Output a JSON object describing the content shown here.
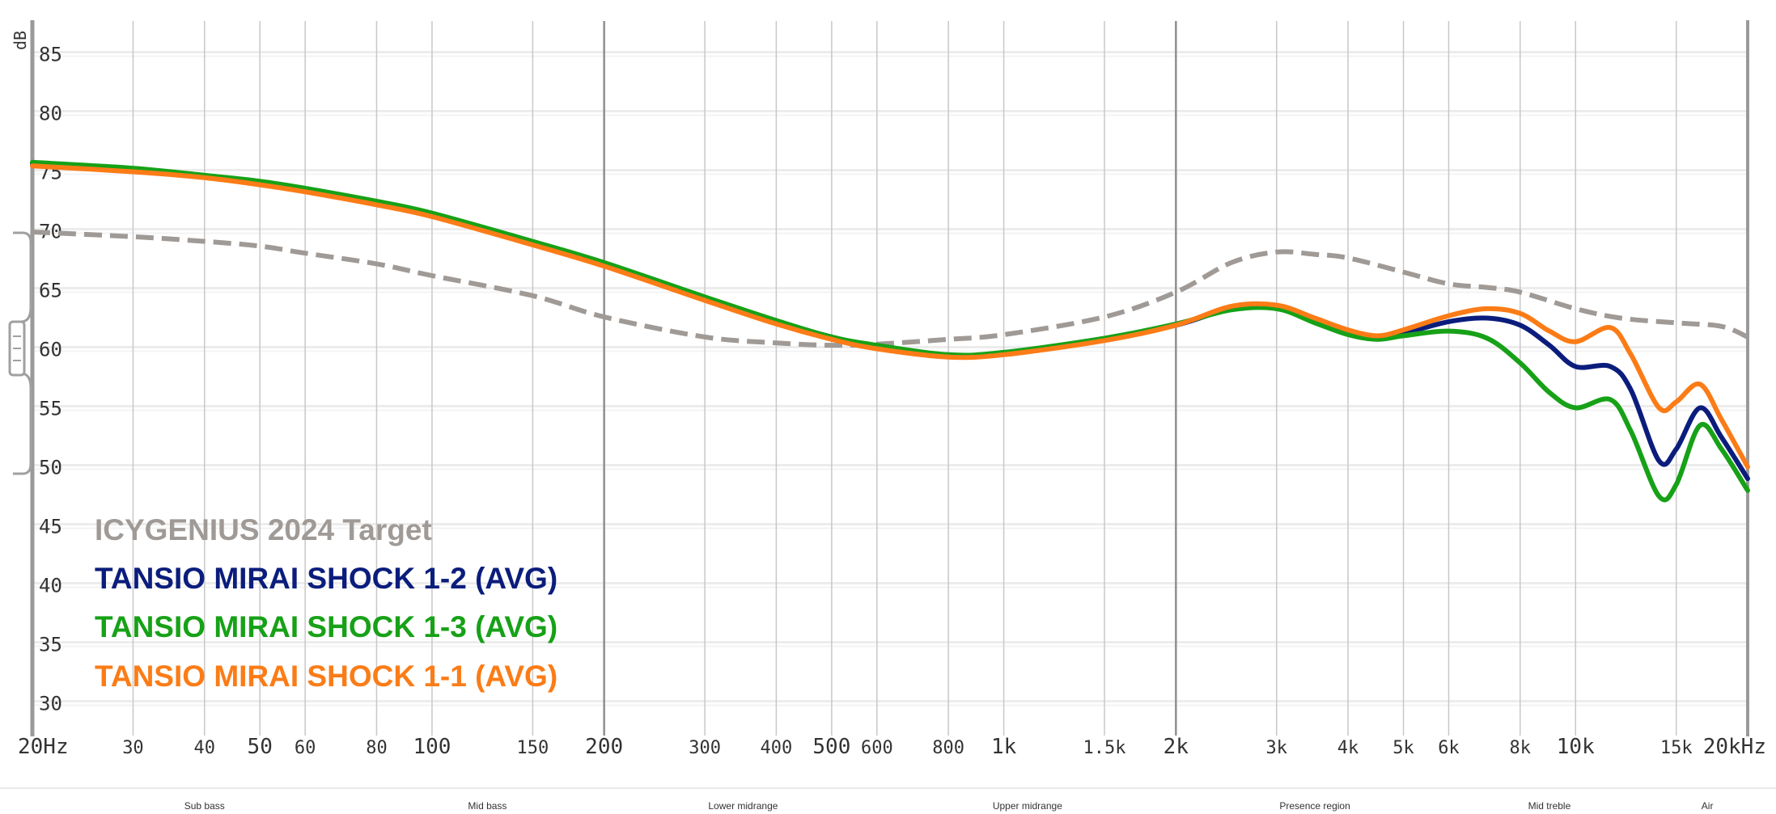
{
  "chart_data": {
    "type": "line",
    "x_scale": "log",
    "xlim": [
      20,
      20000
    ],
    "ylim": [
      27.5,
      87.5
    ],
    "ylabel": "dB",
    "y_ticks": [
      85,
      80,
      75,
      70,
      65,
      60,
      55,
      50,
      45,
      40,
      35,
      30
    ],
    "x_ticks": [
      {
        "value": 20,
        "label": "20Hz",
        "major": true
      },
      {
        "value": 30,
        "label": "30",
        "major": false
      },
      {
        "value": 40,
        "label": "40",
        "major": false
      },
      {
        "value": 50,
        "label": "50",
        "major": false
      },
      {
        "value": 60,
        "label": "60",
        "major": false
      },
      {
        "value": 80,
        "label": "80",
        "major": false
      },
      {
        "value": 100,
        "label": "100",
        "major": false
      },
      {
        "value": 150,
        "label": "150",
        "major": false
      },
      {
        "value": 200,
        "label": "200",
        "major": true
      },
      {
        "value": 300,
        "label": "300",
        "major": false
      },
      {
        "value": 400,
        "label": "400",
        "major": false
      },
      {
        "value": 500,
        "label": "500",
        "major": false
      },
      {
        "value": 600,
        "label": "600",
        "major": false
      },
      {
        "value": 800,
        "label": "800",
        "major": false
      },
      {
        "value": 1000,
        "label": "1k",
        "major": false
      },
      {
        "value": 1500,
        "label": "1.5k",
        "major": false
      },
      {
        "value": 2000,
        "label": "2k",
        "major": true
      },
      {
        "value": 3000,
        "label": "3k",
        "major": false
      },
      {
        "value": 4000,
        "label": "4k",
        "major": false
      },
      {
        "value": 5000,
        "label": "5k",
        "major": false
      },
      {
        "value": 6000,
        "label": "6k",
        "major": false
      },
      {
        "value": 8000,
        "label": "8k",
        "major": false
      },
      {
        "value": 10000,
        "label": "10k",
        "major": false
      },
      {
        "value": 15000,
        "label": "15k",
        "major": false
      },
      {
        "value": 20000,
        "label": "20kHz",
        "major": true
      }
    ],
    "bands": [
      {
        "label": "Sub bass",
        "x": 40
      },
      {
        "label": "Mid bass",
        "x": 125
      },
      {
        "label": "Lower midrange",
        "x": 350
      },
      {
        "label": "Upper midrange",
        "x": 1100
      },
      {
        "label": "Presence region",
        "x": 3500
      },
      {
        "label": "Mid treble",
        "x": 9000
      },
      {
        "label": "Air",
        "x": 17000
      }
    ],
    "grid": true,
    "legend_position": "bottom-left",
    "series": [
      {
        "name": "ICYGENIUS 2024 Target",
        "color": "#a09a96",
        "dashed": true,
        "width": 6,
        "points": [
          [
            20,
            69.9
          ],
          [
            30,
            69.5
          ],
          [
            40,
            69.1
          ],
          [
            50,
            68.7
          ],
          [
            60,
            68.1
          ],
          [
            80,
            67.2
          ],
          [
            100,
            66.2
          ],
          [
            150,
            64.5
          ],
          [
            200,
            62.7
          ],
          [
            300,
            61.0
          ],
          [
            400,
            60.5
          ],
          [
            500,
            60.3
          ],
          [
            600,
            60.4
          ],
          [
            800,
            60.8
          ],
          [
            1000,
            61.2
          ],
          [
            1500,
            62.7
          ],
          [
            2000,
            64.8
          ],
          [
            2500,
            67.3
          ],
          [
            3000,
            68.2
          ],
          [
            3500,
            68.0
          ],
          [
            4000,
            67.7
          ],
          [
            5000,
            66.5
          ],
          [
            6000,
            65.5
          ],
          [
            7000,
            65.2
          ],
          [
            8000,
            64.8
          ],
          [
            10000,
            63.4
          ],
          [
            12000,
            62.6
          ],
          [
            15000,
            62.2
          ],
          [
            18000,
            61.9
          ],
          [
            20000,
            61.0
          ]
        ]
      },
      {
        "name": "TANSIO MIRAI SHOCK 1-2 (AVG)",
        "color": "#0b1d7c",
        "dashed": false,
        "width": 6,
        "points": [
          [
            20,
            75.7
          ],
          [
            30,
            75.2
          ],
          [
            40,
            74.6
          ],
          [
            50,
            74.1
          ],
          [
            60,
            73.5
          ],
          [
            80,
            72.4
          ],
          [
            100,
            71.4
          ],
          [
            150,
            69.0
          ],
          [
            200,
            67.2
          ],
          [
            300,
            64.3
          ],
          [
            400,
            62.3
          ],
          [
            500,
            61.0
          ],
          [
            600,
            60.2
          ],
          [
            800,
            59.4
          ],
          [
            1000,
            59.6
          ],
          [
            1500,
            60.8
          ],
          [
            2000,
            62.0
          ],
          [
            2500,
            63.4
          ],
          [
            3000,
            63.5
          ],
          [
            3500,
            62.4
          ],
          [
            4000,
            61.3
          ],
          [
            4500,
            60.9
          ],
          [
            5000,
            61.3
          ],
          [
            6000,
            62.3
          ],
          [
            7000,
            62.6
          ],
          [
            8000,
            62.0
          ],
          [
            9000,
            60.3
          ],
          [
            10000,
            58.5
          ],
          [
            11500,
            58.5
          ],
          [
            12500,
            56.5
          ],
          [
            14000,
            50.5
          ],
          [
            15000,
            51.5
          ],
          [
            16500,
            55.0
          ],
          [
            18000,
            52.5
          ],
          [
            20000,
            49.0
          ]
        ]
      },
      {
        "name": "TANSIO MIRAI SHOCK 1-3 (AVG)",
        "color": "#17a117",
        "dashed": false,
        "width": 6,
        "points": [
          [
            20,
            75.8
          ],
          [
            30,
            75.3
          ],
          [
            40,
            74.7
          ],
          [
            50,
            74.2
          ],
          [
            60,
            73.6
          ],
          [
            80,
            72.5
          ],
          [
            100,
            71.5
          ],
          [
            150,
            69.1
          ],
          [
            200,
            67.3
          ],
          [
            300,
            64.4
          ],
          [
            400,
            62.4
          ],
          [
            500,
            61.0
          ],
          [
            600,
            60.3
          ],
          [
            800,
            59.5
          ],
          [
            1000,
            59.7
          ],
          [
            1500,
            60.9
          ],
          [
            2000,
            62.1
          ],
          [
            2500,
            63.3
          ],
          [
            3000,
            63.4
          ],
          [
            3500,
            62.2
          ],
          [
            4000,
            61.2
          ],
          [
            4500,
            60.8
          ],
          [
            5000,
            61.1
          ],
          [
            6000,
            61.5
          ],
          [
            7000,
            60.9
          ],
          [
            8000,
            58.8
          ],
          [
            9000,
            56.3
          ],
          [
            10000,
            55.0
          ],
          [
            11500,
            55.7
          ],
          [
            12500,
            53.0
          ],
          [
            14000,
            47.5
          ],
          [
            15000,
            48.5
          ],
          [
            16500,
            53.5
          ],
          [
            18000,
            51.5
          ],
          [
            20000,
            48.0
          ]
        ]
      },
      {
        "name": "TANSIO MIRAI SHOCK 1-1 (AVG)",
        "color": "#fb7c17",
        "dashed": false,
        "width": 6,
        "points": [
          [
            20,
            75.5
          ],
          [
            30,
            75.0
          ],
          [
            40,
            74.5
          ],
          [
            50,
            73.9
          ],
          [
            60,
            73.3
          ],
          [
            80,
            72.2
          ],
          [
            100,
            71.2
          ],
          [
            150,
            68.8
          ],
          [
            200,
            67.0
          ],
          [
            300,
            64.1
          ],
          [
            400,
            62.1
          ],
          [
            500,
            60.8
          ],
          [
            600,
            60.0
          ],
          [
            800,
            59.3
          ],
          [
            1000,
            59.5
          ],
          [
            1500,
            60.7
          ],
          [
            2000,
            62.0
          ],
          [
            2500,
            63.6
          ],
          [
            3000,
            63.7
          ],
          [
            3500,
            62.6
          ],
          [
            4000,
            61.6
          ],
          [
            4500,
            61.1
          ],
          [
            5000,
            61.6
          ],
          [
            6000,
            62.8
          ],
          [
            7000,
            63.4
          ],
          [
            8000,
            63.0
          ],
          [
            9000,
            61.5
          ],
          [
            10000,
            60.6
          ],
          [
            11500,
            61.8
          ],
          [
            12500,
            59.5
          ],
          [
            14000,
            55.0
          ],
          [
            15000,
            55.5
          ],
          [
            16500,
            57.0
          ],
          [
            18000,
            54.0
          ],
          [
            20000,
            50.0
          ]
        ]
      }
    ]
  }
}
